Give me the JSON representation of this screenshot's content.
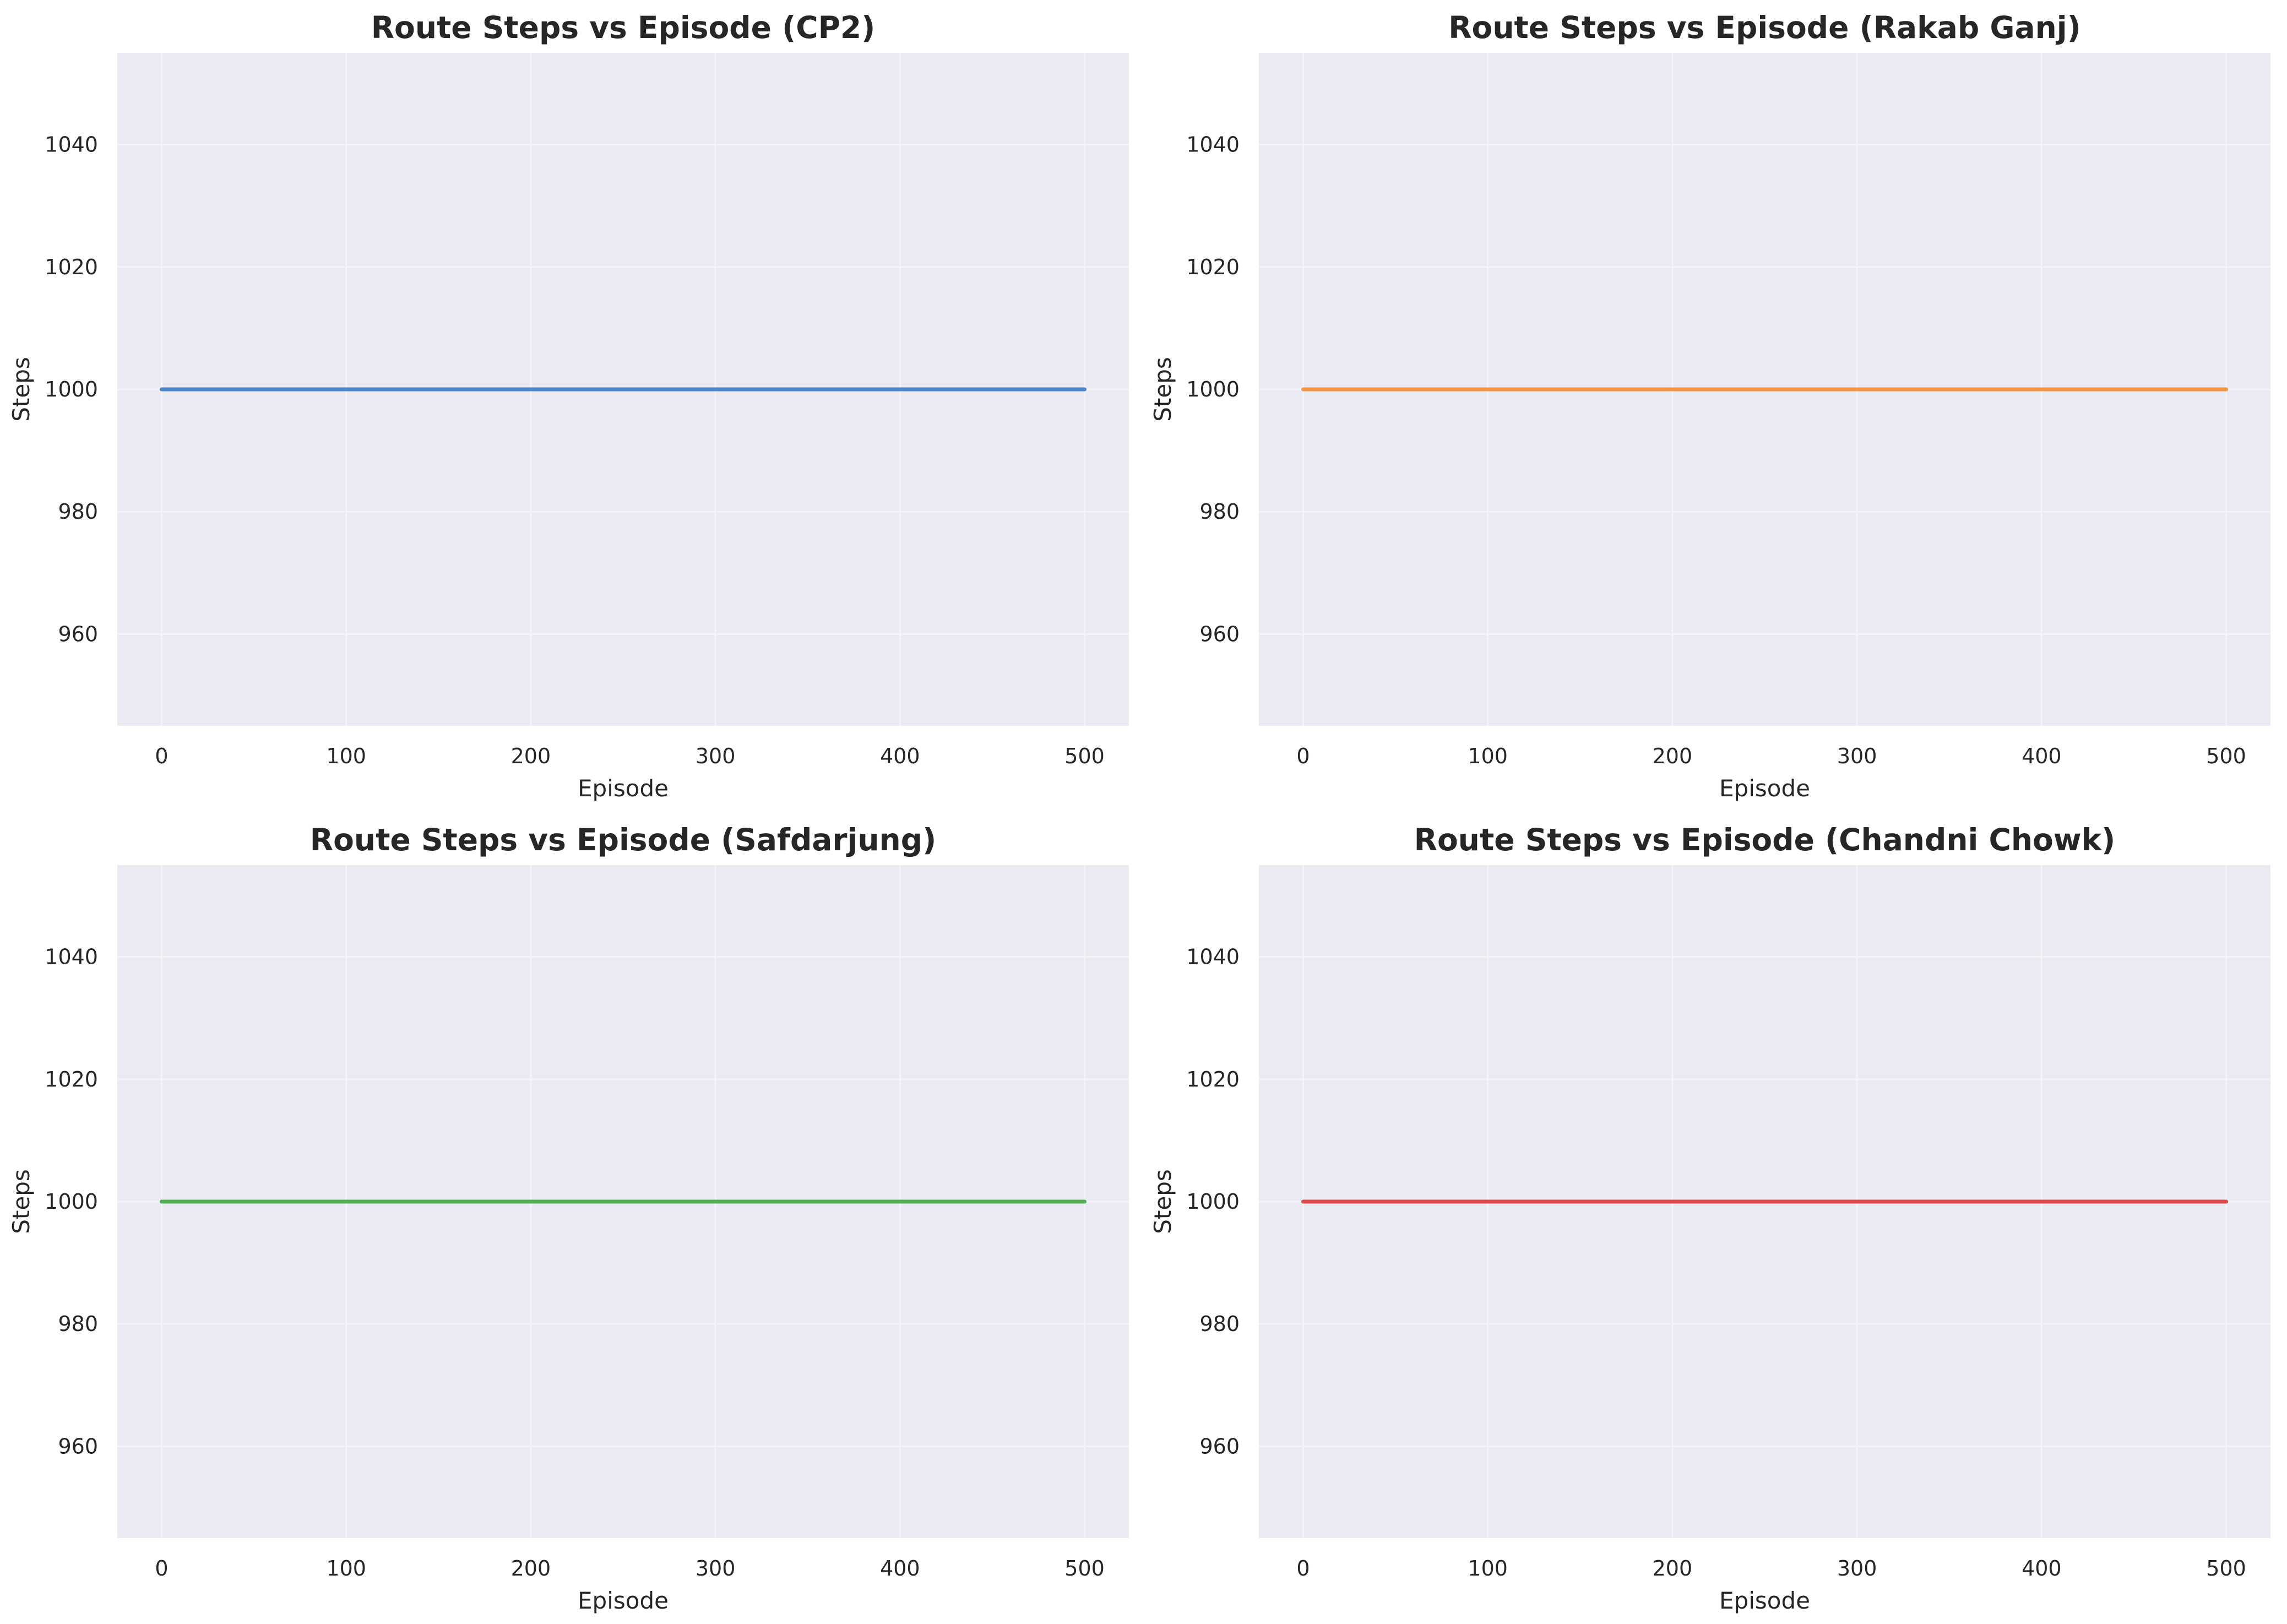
{
  "chart_data": [
    {
      "type": "line",
      "title": "Route Steps vs Episode (CP2)",
      "xlabel": "Episode",
      "ylabel": "Steps",
      "xlim": [
        -24,
        524
      ],
      "ylim": [
        945,
        1055
      ],
      "xticks": [
        0,
        100,
        200,
        300,
        400,
        500
      ],
      "yticks": [
        960,
        980,
        1000,
        1020,
        1040
      ],
      "grid": true,
      "series": [
        {
          "name": "CP2",
          "color": "#4a86c8",
          "x": [
            0,
            500
          ],
          "y": [
            1000,
            1000
          ]
        }
      ]
    },
    {
      "type": "line",
      "title": "Route Steps vs Episode (Rakab Ganj)",
      "xlabel": "Episode",
      "ylabel": "Steps",
      "xlim": [
        -24,
        524
      ],
      "ylim": [
        945,
        1055
      ],
      "xticks": [
        0,
        100,
        200,
        300,
        400,
        500
      ],
      "yticks": [
        960,
        980,
        1000,
        1020,
        1040
      ],
      "grid": true,
      "series": [
        {
          "name": "Rakab Ganj",
          "color": "#f5953f",
          "x": [
            0,
            500
          ],
          "y": [
            1000,
            1000
          ]
        }
      ]
    },
    {
      "type": "line",
      "title": "Route Steps vs Episode (Safdarjung)",
      "xlabel": "Episode",
      "ylabel": "Steps",
      "xlim": [
        -24,
        524
      ],
      "ylim": [
        945,
        1055
      ],
      "xticks": [
        0,
        100,
        200,
        300,
        400,
        500
      ],
      "yticks": [
        960,
        980,
        1000,
        1020,
        1040
      ],
      "grid": true,
      "series": [
        {
          "name": "Safdarjung",
          "color": "#52ad52",
          "x": [
            0,
            500
          ],
          "y": [
            1000,
            1000
          ]
        }
      ]
    },
    {
      "type": "line",
      "title": "Route Steps vs Episode (Chandni Chowk)",
      "xlabel": "Episode",
      "ylabel": "Steps",
      "xlim": [
        -24,
        524
      ],
      "ylim": [
        945,
        1055
      ],
      "xticks": [
        0,
        100,
        200,
        300,
        400,
        500
      ],
      "yticks": [
        960,
        980,
        1000,
        1020,
        1040
      ],
      "grid": true,
      "series": [
        {
          "name": "Chandni Chowk",
          "color": "#d9484a",
          "x": [
            0,
            500
          ],
          "y": [
            1000,
            1000
          ]
        }
      ]
    }
  ]
}
